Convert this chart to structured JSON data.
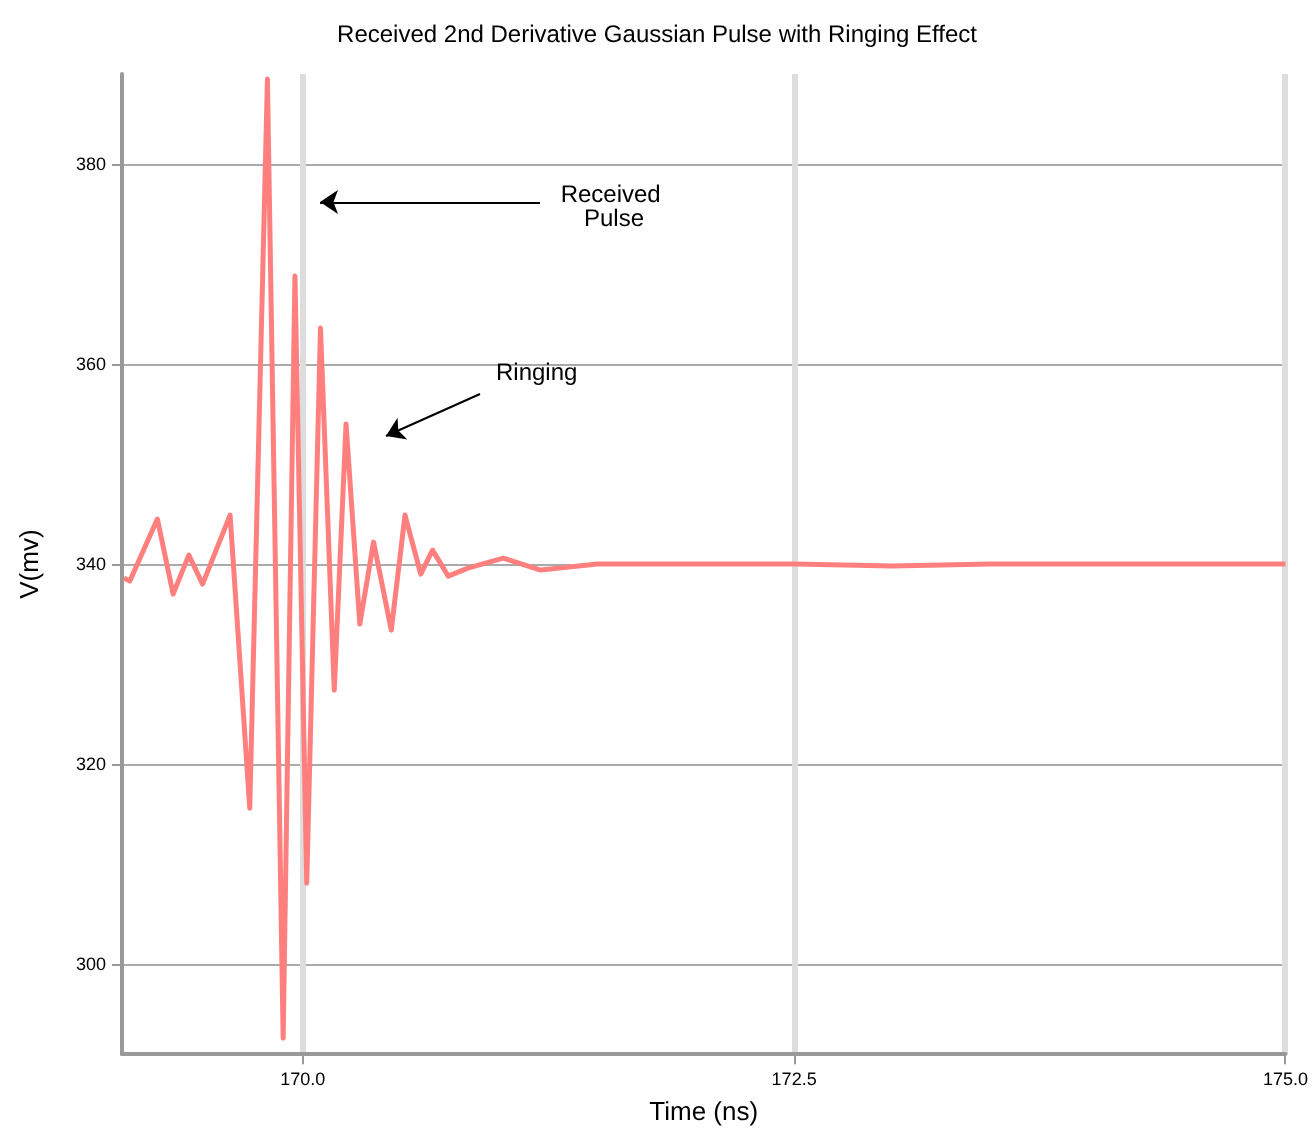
{
  "chart_data": {
    "type": "line",
    "title": "Received 2nd Derivative Gaussian Pulse with Ringing Effect",
    "xlabel": "Time (ns)",
    "ylabel": "V(mv)",
    "x": [
      169.09,
      169.12,
      169.26,
      169.34,
      169.42,
      169.49,
      169.63,
      169.73,
      169.82,
      169.9,
      169.96,
      170.02,
      170.09,
      170.16,
      170.22,
      170.29,
      170.36,
      170.45,
      170.52,
      170.6,
      170.66,
      170.74,
      170.84,
      171.02,
      171.21,
      171.5,
      172,
      172.5,
      173,
      173.5,
      174,
      174.5,
      175
    ],
    "series": [
      {
        "color": "#ff7f7f",
        "values": [
          338.6,
          338.3,
          344.5,
          337,
          340.9,
          338,
          344.9,
          315.6,
          388.5,
          292.6,
          368.8,
          308.1,
          363.6,
          327.4,
          354,
          334,
          342.2,
          333.4,
          344.9,
          339,
          341.4,
          338.8,
          339.6,
          340.6,
          339.4,
          340,
          340,
          340,
          339.8,
          340,
          340,
          340,
          340
        ]
      }
    ],
    "xlim": [
      169.08,
      175
    ],
    "xticks": [
      {
        "value": 170,
        "label": "170.0"
      },
      {
        "value": 172.5,
        "label": "172.5"
      },
      {
        "value": 175,
        "label": "175.0"
      }
    ],
    "ylim": [
      291,
      389
    ],
    "yticks": [
      300,
      320,
      340,
      360,
      380
    ],
    "grid": true,
    "marker": "none",
    "line_style": "solid",
    "annotations": [
      "Received Pulse",
      "Ringing"
    ]
  }
}
